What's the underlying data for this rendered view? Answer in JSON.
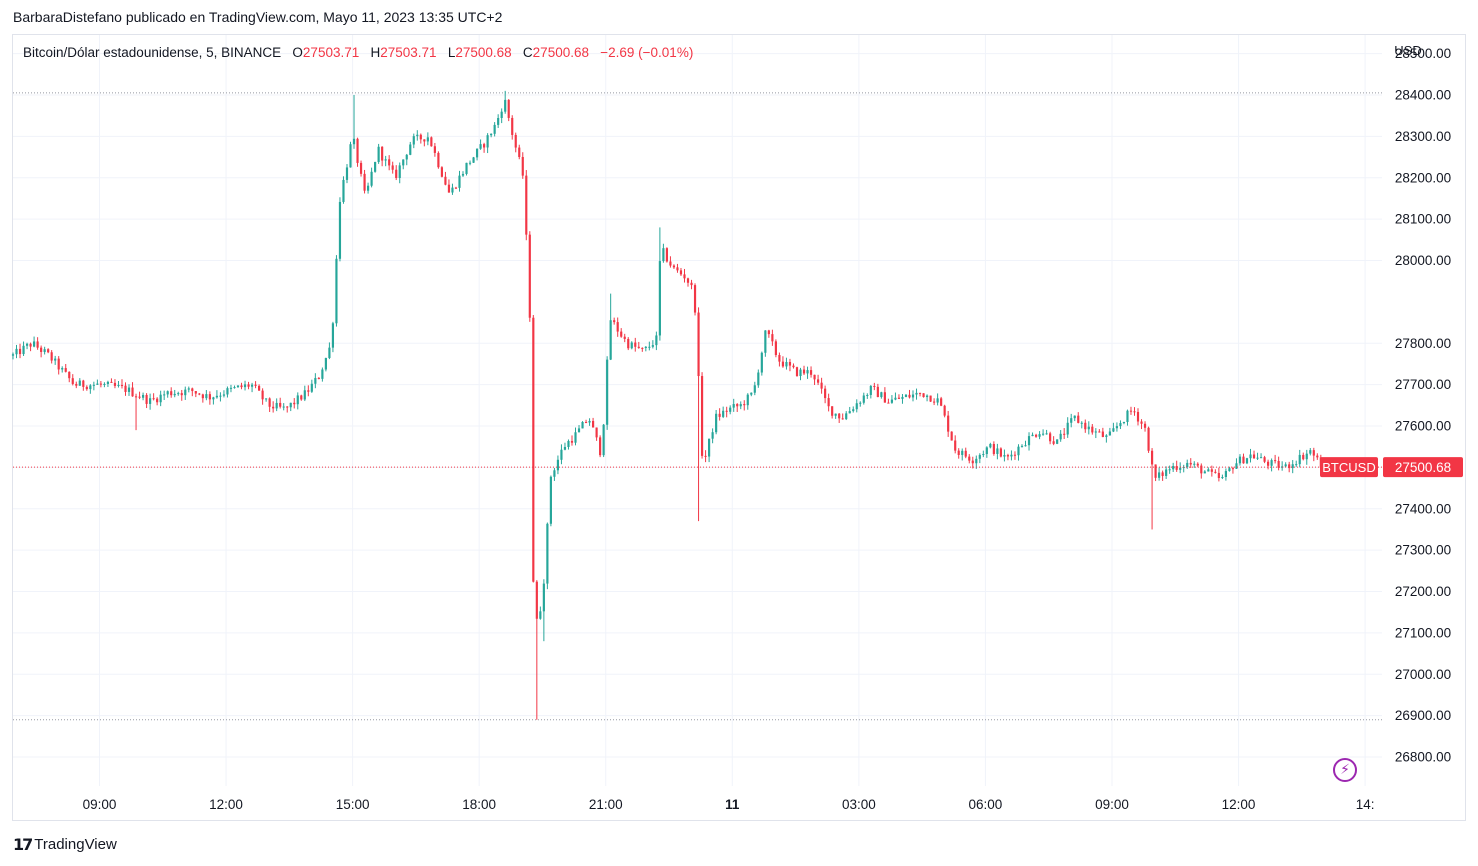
{
  "header": {
    "publisher_line": "BarbaraDistefano publicado en TradingView.com, Mayo 11, 2023 13:35 UTC+2"
  },
  "legend": {
    "symbol": "Bitcoin/Dólar estadounidense, 5, BINANCE",
    "o_label": "O",
    "o_value": "27503.71",
    "h_label": "H",
    "h_value": "27503.71",
    "l_label": "L",
    "l_value": "27500.68",
    "c_label": "C",
    "c_value": "27500.68",
    "change": "−2.69 (−0.01%)"
  },
  "footer": {
    "brand": "TradingView",
    "brand_mark": "17"
  },
  "colors": {
    "up": "#26a69a",
    "down": "#f23645",
    "grid": "#f0f3fa",
    "axis_text": "#131722"
  },
  "chart_data": {
    "type": "candlestick",
    "currency_label": "USD",
    "ylim": [
      26730,
      28545
    ],
    "y_ticks": [
      "26800.00",
      "26900.00",
      "27000.00",
      "27100.00",
      "27200.00",
      "27300.00",
      "27400.00",
      "27500.00",
      "27600.00",
      "27700.00",
      "27800.00",
      "28000.00",
      "28100.00",
      "28200.00",
      "28300.00",
      "28400.00",
      "28500.00"
    ],
    "x_ticks": [
      "09:00",
      "12:00",
      "15:00",
      "18:00",
      "21:00",
      "11",
      "03:00",
      "06:00",
      "09:00",
      "12:00",
      "14:"
    ],
    "x_tick_hours": [
      9,
      12,
      15,
      18,
      21,
      24,
      27,
      30,
      33,
      36,
      39
    ],
    "x_start_hour": 6.95,
    "x_end_hour": 39.4,
    "reference_high": 28405,
    "reference_low": 26890,
    "last_price": {
      "symbol": "BTCUSD",
      "value": "27500.68",
      "price": 27500.68
    },
    "path": [
      [
        6.95,
        27770
      ],
      [
        7.4,
        27800
      ],
      [
        7.8,
        27770
      ],
      [
        8.4,
        27700
      ],
      [
        9.0,
        27700
      ],
      [
        9.6,
        27690
      ],
      [
        10.2,
        27660
      ],
      [
        10.6,
        27680
      ],
      [
        11.2,
        27685
      ],
      [
        11.6,
        27670
      ],
      [
        12.2,
        27690
      ],
      [
        12.6,
        27700
      ],
      [
        13.0,
        27650
      ],
      [
        13.4,
        27640
      ],
      [
        13.9,
        27680
      ],
      [
        14.2,
        27720
      ],
      [
        14.5,
        27800
      ],
      [
        14.7,
        28150
      ],
      [
        15.0,
        28300
      ],
      [
        15.3,
        28150
      ],
      [
        15.6,
        28270
      ],
      [
        16.0,
        28200
      ],
      [
        16.4,
        28290
      ],
      [
        16.8,
        28300
      ],
      [
        17.3,
        28160
      ],
      [
        17.7,
        28230
      ],
      [
        18.1,
        28280
      ],
      [
        18.4,
        28330
      ],
      [
        18.6,
        28390
      ],
      [
        18.8,
        28300
      ],
      [
        19.05,
        28200
      ],
      [
        19.2,
        27870
      ],
      [
        19.3,
        27100
      ],
      [
        19.5,
        27180
      ],
      [
        19.7,
        27480
      ],
      [
        20.0,
        27550
      ],
      [
        20.3,
        27580
      ],
      [
        20.6,
        27620
      ],
      [
        20.9,
        27530
      ],
      [
        21.1,
        27860
      ],
      [
        21.5,
        27800
      ],
      [
        21.9,
        27780
      ],
      [
        22.2,
        27810
      ],
      [
        22.3,
        28030
      ],
      [
        22.6,
        27980
      ],
      [
        22.9,
        27960
      ],
      [
        23.1,
        27920
      ],
      [
        23.3,
        27500
      ],
      [
        23.6,
        27620
      ],
      [
        23.9,
        27640
      ],
      [
        24.2,
        27650
      ],
      [
        24.5,
        27680
      ],
      [
        24.8,
        27830
      ],
      [
        25.1,
        27760
      ],
      [
        25.5,
        27730
      ],
      [
        25.9,
        27730
      ],
      [
        26.3,
        27640
      ],
      [
        26.6,
        27620
      ],
      [
        27.0,
        27660
      ],
      [
        27.3,
        27690
      ],
      [
        27.7,
        27660
      ],
      [
        28.1,
        27670
      ],
      [
        28.5,
        27680
      ],
      [
        28.9,
        27660
      ],
      [
        29.3,
        27540
      ],
      [
        29.7,
        27520
      ],
      [
        30.1,
        27550
      ],
      [
        30.5,
        27520
      ],
      [
        30.9,
        27560
      ],
      [
        31.3,
        27590
      ],
      [
        31.7,
        27560
      ],
      [
        32.1,
        27620
      ],
      [
        32.5,
        27590
      ],
      [
        32.9,
        27570
      ],
      [
        33.2,
        27610
      ],
      [
        33.5,
        27640
      ],
      [
        33.8,
        27590
      ],
      [
        34.0,
        27470
      ],
      [
        34.4,
        27500
      ],
      [
        34.8,
        27510
      ],
      [
        35.2,
        27490
      ],
      [
        35.6,
        27470
      ],
      [
        35.9,
        27510
      ],
      [
        36.3,
        27530
      ],
      [
        36.7,
        27510
      ],
      [
        37.1,
        27500
      ],
      [
        37.4,
        27520
      ],
      [
        37.7,
        27540
      ],
      [
        38.0,
        27500
      ]
    ],
    "spikes": [
      {
        "hour": 9.9,
        "low": 27590
      },
      {
        "hour": 19.4,
        "low": 26890
      },
      {
        "hour": 19.5,
        "low": 27080
      },
      {
        "hour": 23.2,
        "low": 27370
      },
      {
        "hour": 33.95,
        "low": 27350
      },
      {
        "hour": 22.3,
        "high": 28080
      },
      {
        "hour": 21.1,
        "high": 27920
      },
      {
        "hour": 18.6,
        "high": 28410
      },
      {
        "hour": 15.0,
        "high": 28400
      }
    ]
  }
}
